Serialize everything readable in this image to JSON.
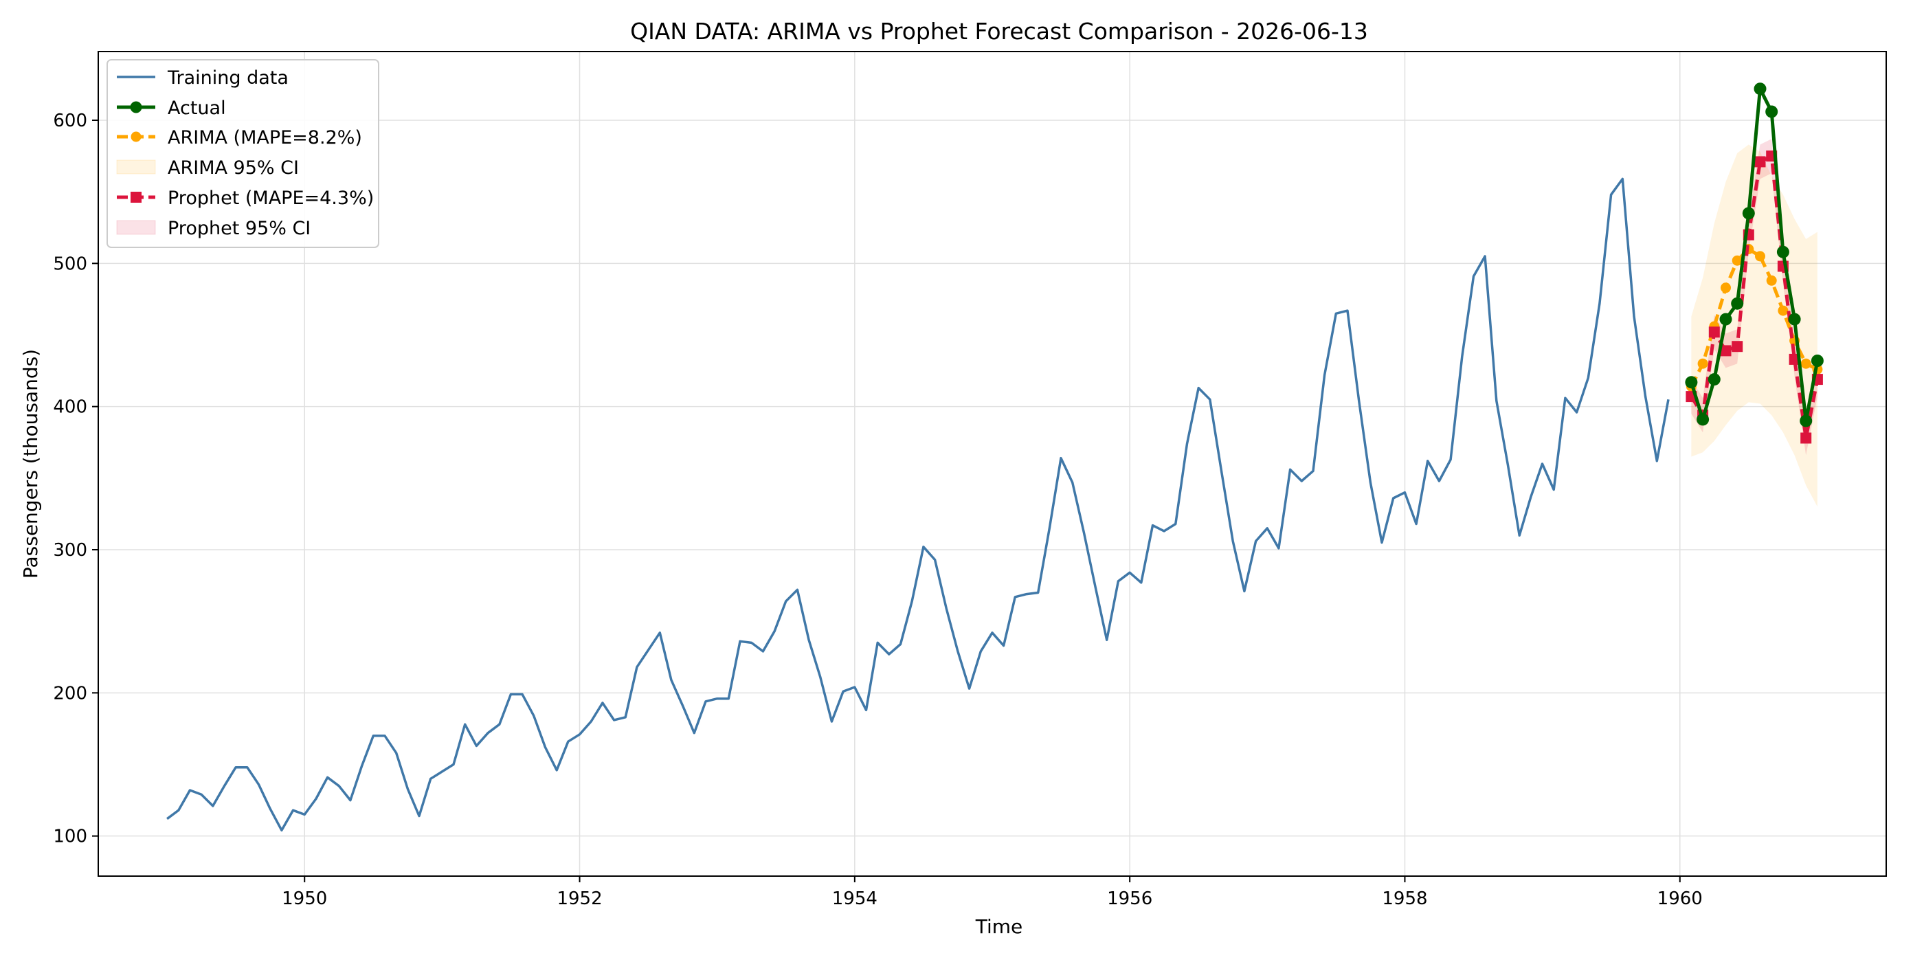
{
  "chart_data": {
    "type": "line",
    "title": "QIAN DATA: ARIMA vs Prophet Forecast Comparison - 2026-06-13",
    "xlabel": "Time",
    "ylabel": "Passengers (thousands)",
    "xlim": [
      1948.5,
      1961.5
    ],
    "ylim": [
      72,
      648
    ],
    "xticks": [
      1950,
      1952,
      1954,
      1956,
      1958,
      1960
    ],
    "yticks": [
      100,
      200,
      300,
      400,
      500,
      600
    ],
    "grid": true,
    "legend_position": "top-left",
    "series": [
      {
        "name": "Training data",
        "color": "#4078a8",
        "x_start": 1949.0,
        "x_step": 0.08333,
        "values": [
          112,
          118,
          132,
          129,
          121,
          135,
          148,
          148,
          136,
          119,
          104,
          118,
          115,
          126,
          141,
          135,
          125,
          149,
          170,
          170,
          158,
          133,
          114,
          140,
          145,
          150,
          178,
          163,
          172,
          178,
          199,
          199,
          184,
          162,
          146,
          166,
          171,
          180,
          193,
          181,
          183,
          218,
          230,
          242,
          209,
          191,
          172,
          194,
          196,
          196,
          236,
          235,
          229,
          243,
          264,
          272,
          237,
          211,
          180,
          201,
          204,
          188,
          235,
          227,
          234,
          264,
          302,
          293,
          259,
          229,
          203,
          229,
          242,
          233,
          267,
          269,
          270,
          315,
          364,
          347,
          312,
          274,
          237,
          278,
          284,
          277,
          317,
          313,
          318,
          374,
          413,
          405,
          355,
          306,
          271,
          306,
          315,
          301,
          356,
          348,
          355,
          422,
          465,
          467,
          404,
          347,
          305,
          336,
          340,
          318,
          362,
          348,
          363,
          435,
          491,
          505,
          404,
          359,
          310,
          337,
          360,
          342,
          406,
          396,
          420,
          472,
          548,
          559,
          463,
          407,
          362,
          405
        ]
      },
      {
        "name": "Actual",
        "color": "#006400",
        "x_start": 1960.0833,
        "x_step": 0.08333,
        "values": [
          417,
          391,
          419,
          461,
          472,
          535,
          622,
          606,
          508,
          461,
          390,
          432
        ]
      },
      {
        "name": "ARIMA (MAPE=8.2%)",
        "color": "#ffa500",
        "x_start": 1960.0833,
        "x_step": 0.08333,
        "values": [
          414,
          430,
          456,
          483,
          502,
          510,
          505,
          488,
          467,
          446,
          430,
          426
        ]
      },
      {
        "name": "Prophet (MAPE=4.3%)",
        "color": "#dc143c",
        "x_start": 1960.0833,
        "x_step": 0.08333,
        "values": [
          407,
          394,
          452,
          439,
          442,
          520,
          571,
          575,
          498,
          433,
          378,
          419
        ]
      }
    ],
    "bands": [
      {
        "name": "ARIMA 95% CI",
        "color": "#ffa500",
        "lower": [
          365,
          368,
          376,
          387,
          397,
          403,
          402,
          394,
          382,
          366,
          345,
          330
        ],
        "upper": [
          463,
          490,
          528,
          557,
          577,
          583,
          578,
          561,
          548,
          531,
          517,
          522
        ]
      },
      {
        "name": "Prophet 95% CI",
        "color": "#dc143c",
        "lower": [
          395,
          382,
          440,
          427,
          430,
          508,
          559,
          563,
          486,
          421,
          366,
          407
        ],
        "upper": [
          419,
          406,
          464,
          451,
          454,
          532,
          583,
          587,
          510,
          445,
          390,
          431
        ]
      }
    ]
  }
}
